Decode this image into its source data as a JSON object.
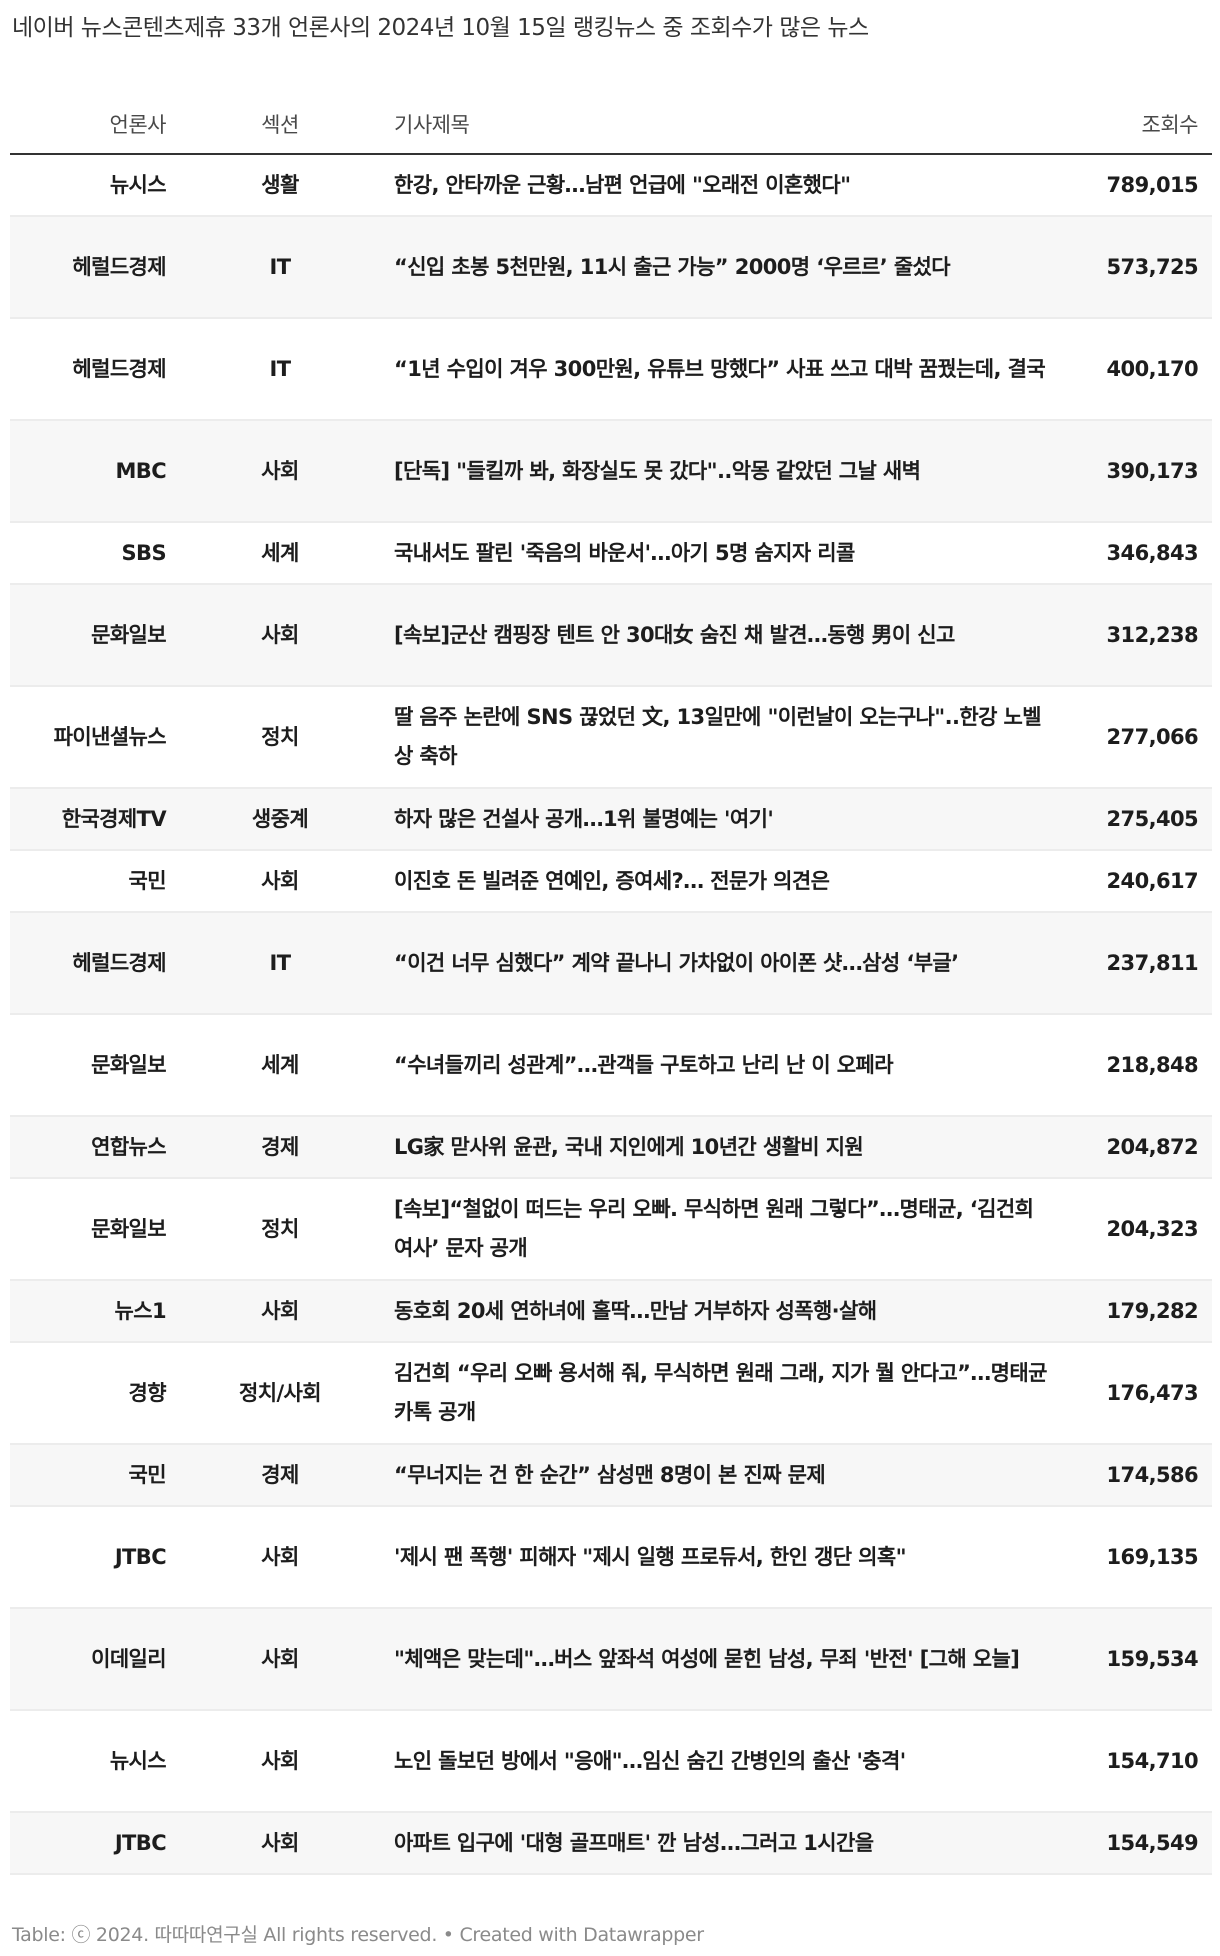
{
  "title": "네이버 뉴스콘텐츠제휴 33개 언론사의 2024년 10월 15일 랭킹뉴스 중 조회수가 많은 뉴스",
  "columns": {
    "publisher": "언론사",
    "section": "섹션",
    "headline": "기사제목",
    "views": "조회수"
  },
  "rows": [
    {
      "publisher": "뉴시스",
      "section": "생활",
      "headline": "한강, 안타까운 근황…남편 언급에 \"오래전 이혼했다\"",
      "views": "789,015"
    },
    {
      "publisher": "헤럴드경제",
      "section": "IT",
      "headline": "“신입 초봉 5천만원, 11시 출근 가능” 2000명 ‘우르르’ 줄섰다",
      "views": "573,725"
    },
    {
      "publisher": "헤럴드경제",
      "section": "IT",
      "headline": "“1년 수입이 겨우 300만원, 유튜브 망했다” 사표 쓰고 대박 꿈꿨는데, 결국",
      "views": "400,170"
    },
    {
      "publisher": "MBC",
      "section": "사회",
      "headline": "[단독] \"들킬까 봐, 화장실도 못 갔다\"..악몽 같았던 그날 새벽",
      "views": "390,173"
    },
    {
      "publisher": "SBS",
      "section": "세계",
      "headline": "국내서도 팔린 '죽음의 바운서'…아기 5명 숨지자 리콜",
      "views": "346,843"
    },
    {
      "publisher": "문화일보",
      "section": "사회",
      "headline": "[속보]군산 캠핑장 텐트 안 30대女 숨진 채 발견…동행 男이 신고",
      "views": "312,238"
    },
    {
      "publisher": "파이낸셜뉴스",
      "section": "정치",
      "headline": "딸 음주 논란에 SNS 끊었던 文, 13일만에 \"이런날이 오는구나\"..한강 노벨상 축하",
      "views": "277,066"
    },
    {
      "publisher": "한국경제TV",
      "section": "생중계",
      "headline": "하자 많은 건설사 공개…1위 불명예는 '여기'",
      "views": "275,405"
    },
    {
      "publisher": "국민",
      "section": "사회",
      "headline": "이진호 돈 빌려준 연예인, 증여세?… 전문가 의견은",
      "views": "240,617"
    },
    {
      "publisher": "헤럴드경제",
      "section": "IT",
      "headline": "“이건 너무 심했다” 계약 끝나니 가차없이 아이폰 샷…삼성 ‘부글’",
      "views": "237,811"
    },
    {
      "publisher": "문화일보",
      "section": "세계",
      "headline": "“수녀들끼리 성관계”…관객들 구토하고 난리 난 이 오페라",
      "views": "218,848"
    },
    {
      "publisher": "연합뉴스",
      "section": "경제",
      "headline": "LG家 맏사위 윤관, 국내 지인에게 10년간 생활비 지원",
      "views": "204,872"
    },
    {
      "publisher": "문화일보",
      "section": "정치",
      "headline": "[속보]“철없이 떠드는 우리 오빠. 무식하면 원래 그렇다”…명태균, ‘김건희 여사’ 문자 공개",
      "views": "204,323"
    },
    {
      "publisher": "뉴스1",
      "section": "사회",
      "headline": "동호회 20세 연하녀에 홀딱…만남 거부하자 성폭행·살해",
      "views": "179,282"
    },
    {
      "publisher": "경향",
      "section": "정치/사회",
      "headline": "김건희 “우리 오빠 용서해 줘, 무식하면 원래 그래, 지가 뭘 안다고”…명태균 카톡 공개",
      "views": "176,473"
    },
    {
      "publisher": "국민",
      "section": "경제",
      "headline": "“무너지는 건 한 순간” 삼성맨 8명이 본 진짜 문제",
      "views": "174,586"
    },
    {
      "publisher": "JTBC",
      "section": "사회",
      "headline": "'제시 팬 폭행' 피해자 \"제시 일행 프로듀서, 한인 갱단 의혹\"",
      "views": "169,135"
    },
    {
      "publisher": "이데일리",
      "section": "사회",
      "headline": "\"체액은 맞는데\"…버스 앞좌석 여성에 묻힌 남성, 무죄 '반전' [그해 오늘]",
      "views": "159,534"
    },
    {
      "publisher": "뉴시스",
      "section": "사회",
      "headline": "노인 돌보던 방에서 \"응애\"…임신 숨긴 간병인의 출산 '충격'",
      "views": "154,710"
    },
    {
      "publisher": "JTBC",
      "section": "사회",
      "headline": "아파트 입구에 '대형 골프매트' 깐 남성…그러고 1시간을",
      "views": "154,549"
    }
  ],
  "footer": "Table: ⓒ 2024. 따따따연구실 All rights reserved. • Created with Datawrapper"
}
